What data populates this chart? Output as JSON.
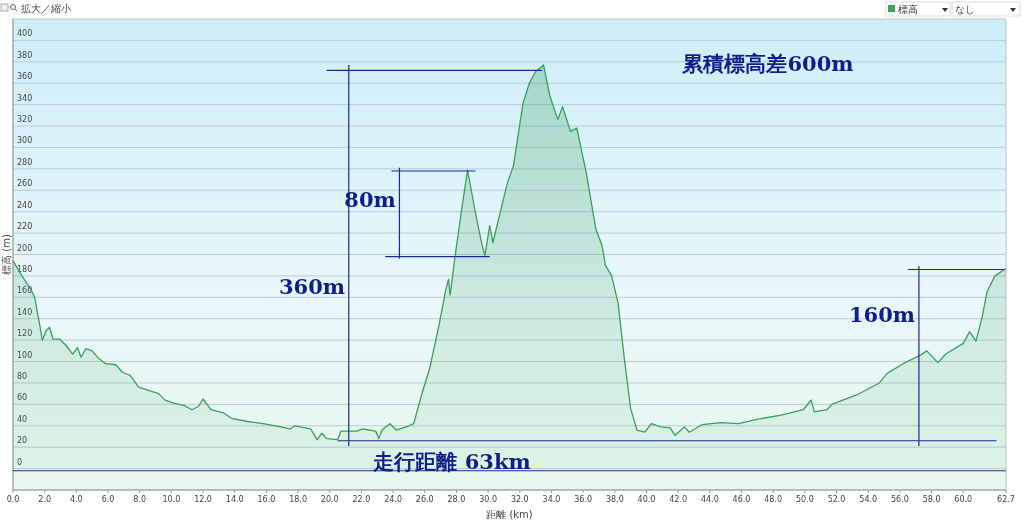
{
  "chart_data": {
    "type": "area",
    "xlabel": "距離 (km)",
    "ylabel": "標高 (m)",
    "xlim": [
      0,
      62.7
    ],
    "ylim": [
      -20,
      420
    ],
    "xticks": [
      {
        "value": 0,
        "label": "0.0"
      },
      {
        "value": 2,
        "label": "2.0"
      },
      {
        "value": 4,
        "label": "4.0"
      },
      {
        "value": 6,
        "label": "6.0"
      },
      {
        "value": 8,
        "label": "8.0"
      },
      {
        "value": 10,
        "label": "10.0"
      },
      {
        "value": 12,
        "label": "12.0"
      },
      {
        "value": 14,
        "label": "14.0"
      },
      {
        "value": 16,
        "label": "16.0"
      },
      {
        "value": 18,
        "label": "18.0"
      },
      {
        "value": 20,
        "label": "20.0"
      },
      {
        "value": 22,
        "label": "22.0"
      },
      {
        "value": 24,
        "label": "24.0"
      },
      {
        "value": 26,
        "label": "26.0"
      },
      {
        "value": 28,
        "label": "28.0"
      },
      {
        "value": 30,
        "label": "30.0"
      },
      {
        "value": 32,
        "label": "32.0"
      },
      {
        "value": 34,
        "label": "34.0"
      },
      {
        "value": 36,
        "label": "36.0"
      },
      {
        "value": 38,
        "label": "38.0"
      },
      {
        "value": 40,
        "label": "40.0"
      },
      {
        "value": 42,
        "label": "42.0"
      },
      {
        "value": 44,
        "label": "44.0"
      },
      {
        "value": 46,
        "label": "46.0"
      },
      {
        "value": 48,
        "label": "48.0"
      },
      {
        "value": 50,
        "label": "50.0"
      },
      {
        "value": 52,
        "label": "52.0"
      },
      {
        "value": 54,
        "label": "54.0"
      },
      {
        "value": 56,
        "label": "56.0"
      },
      {
        "value": 58,
        "label": "58.0"
      },
      {
        "value": 60,
        "label": "60.0"
      },
      62.7
    ],
    "yticks": [
      0,
      20,
      40,
      60,
      80,
      100,
      120,
      140,
      160,
      180,
      200,
      220,
      240,
      260,
      280,
      300,
      320,
      340,
      360,
      380,
      400
    ],
    "grid": "y",
    "legend": "top right",
    "series": [
      {
        "name": "標高",
        "color": "#3aa05a",
        "x": [
          0,
          0.44,
          1.17,
          1.37,
          1.69,
          1.85,
          2.1,
          2.31,
          2.52,
          2.94,
          3.35,
          3.77,
          4.08,
          4.29,
          4.6,
          5.0,
          5.4,
          5.85,
          6.5,
          6.9,
          7.4,
          7.93,
          8.55,
          9.2,
          9.6,
          10.2,
          10.8,
          11.3,
          11.7,
          12.0,
          12.5,
          13.3,
          13.8,
          14.8,
          15.8,
          16.9,
          17.5,
          17.8,
          18.8,
          19.2,
          19.5,
          19.8,
          20.5,
          20.7,
          21.7,
          22.1,
          22.9,
          23.1,
          23.3,
          23.8,
          24.2,
          25.0,
          25.3,
          25.8,
          26.3,
          26.9,
          27.3,
          27.5,
          27.6,
          27.9,
          28.3,
          28.7,
          29.2,
          29.6,
          29.8,
          30.1,
          30.3,
          31.2,
          31.6,
          32.2,
          32.6,
          33.0,
          33.5,
          33.9,
          34.4,
          34.7,
          35.2,
          35.6,
          36.2,
          36.8,
          37.2,
          37.4,
          37.8,
          38.2,
          38.6,
          39.0,
          39.4,
          39.9,
          40.3,
          40.9,
          41.5,
          41.8,
          42.4,
          42.7,
          43.5,
          44.7,
          45.8,
          47.0,
          48.5,
          49.9,
          50.4,
          50.6,
          51.4,
          51.7,
          53.3,
          54.7,
          55.2,
          56.2,
          57.3,
          57.7,
          58.4,
          58.9,
          60.0,
          60.4,
          60.8,
          61.2,
          61.5,
          62.0,
          62.7
        ],
        "values": [
          194,
          183,
          166,
          160,
          134,
          120,
          129,
          132,
          121,
          121,
          115,
          107,
          113,
          104,
          112,
          110,
          103,
          98,
          97,
          90,
          87,
          76,
          73,
          70,
          64,
          61,
          59,
          55,
          58,
          65,
          55,
          52,
          47,
          44,
          42,
          39,
          37,
          40,
          37,
          27,
          33,
          28,
          27,
          35,
          35,
          37,
          35,
          28,
          36,
          42,
          36,
          40,
          42,
          69,
          93,
          134,
          165,
          177,
          162,
          197,
          239,
          279,
          239,
          210,
          199,
          227,
          211,
          266,
          283,
          341,
          360,
          371,
          377,
          348,
          326,
          338,
          315,
          318,
          276,
          224,
          208,
          190,
          180,
          155,
          103,
          56,
          36,
          34,
          42,
          39,
          38,
          31,
          39,
          34,
          41,
          43,
          42,
          46,
          50,
          55,
          64,
          53,
          55,
          60,
          69,
          80,
          89,
          98,
          106,
          110,
          99,
          107,
          117,
          128,
          119,
          142,
          165,
          180,
          187
        ]
      },
      {
        "type": "line",
        "color": "#1a2a9a",
        "x": [
          19.8,
          33.4,
          null,
          21.2,
          21.2,
          null,
          20.5,
          62.1
        ],
        "values": [
          372,
          372,
          null,
          377,
          21,
          null,
          26,
          26
        ]
      },
      {
        "type": "line",
        "color": "#1a2a9a",
        "x": [
          23.9,
          29.2,
          null,
          24.4,
          24.4,
          null,
          23.5,
          30.1
        ],
        "values": [
          278,
          278,
          null,
          281,
          196,
          null,
          198,
          198
        ]
      },
      {
        "type": "line",
        "color": "#1a2a9a",
        "x": [
          56.5,
          62.6,
          null,
          57.2,
          57.2
        ],
        "values": [
          186,
          186,
          null,
          189,
          21
        ]
      }
    ],
    "ref_lines": [
      {
        "axis": "y",
        "value": -2,
        "color": "#1a2a9a"
      }
    ],
    "annotations": [
      "拡大／縮小",
      "なし",
      "累積標高差600m",
      "走行距離 63km",
      "80m",
      "360m",
      "160m"
    ]
  }
}
